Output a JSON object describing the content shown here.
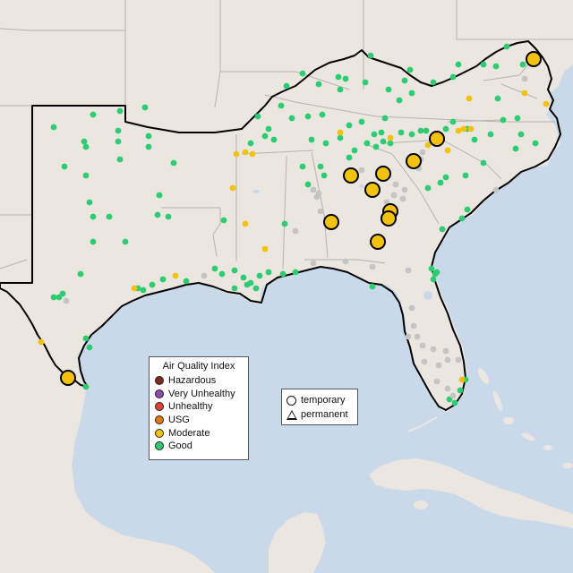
{
  "legend": {
    "title": "Air Quality Index",
    "categories": [
      {
        "label": "Hazardous",
        "color": "#7e2a1e"
      },
      {
        "label": "Very Unhealthy",
        "color": "#8f4cb0"
      },
      {
        "label": "Unhealthy",
        "color": "#e0442e"
      },
      {
        "label": "USG",
        "color": "#e37a10"
      },
      {
        "label": "Moderate",
        "color": "#f2c20f"
      },
      {
        "label": "Good",
        "color": "#2ecc71"
      }
    ]
  },
  "site_legend": {
    "temporary": "temporary",
    "permanent": "permanent"
  },
  "colors": {
    "water": "#c9d9ea",
    "land": "#ebe6e0",
    "no_data": "#c4c4c4",
    "state_border": "#b8b3ae",
    "highlight_border": "#000000"
  }
}
